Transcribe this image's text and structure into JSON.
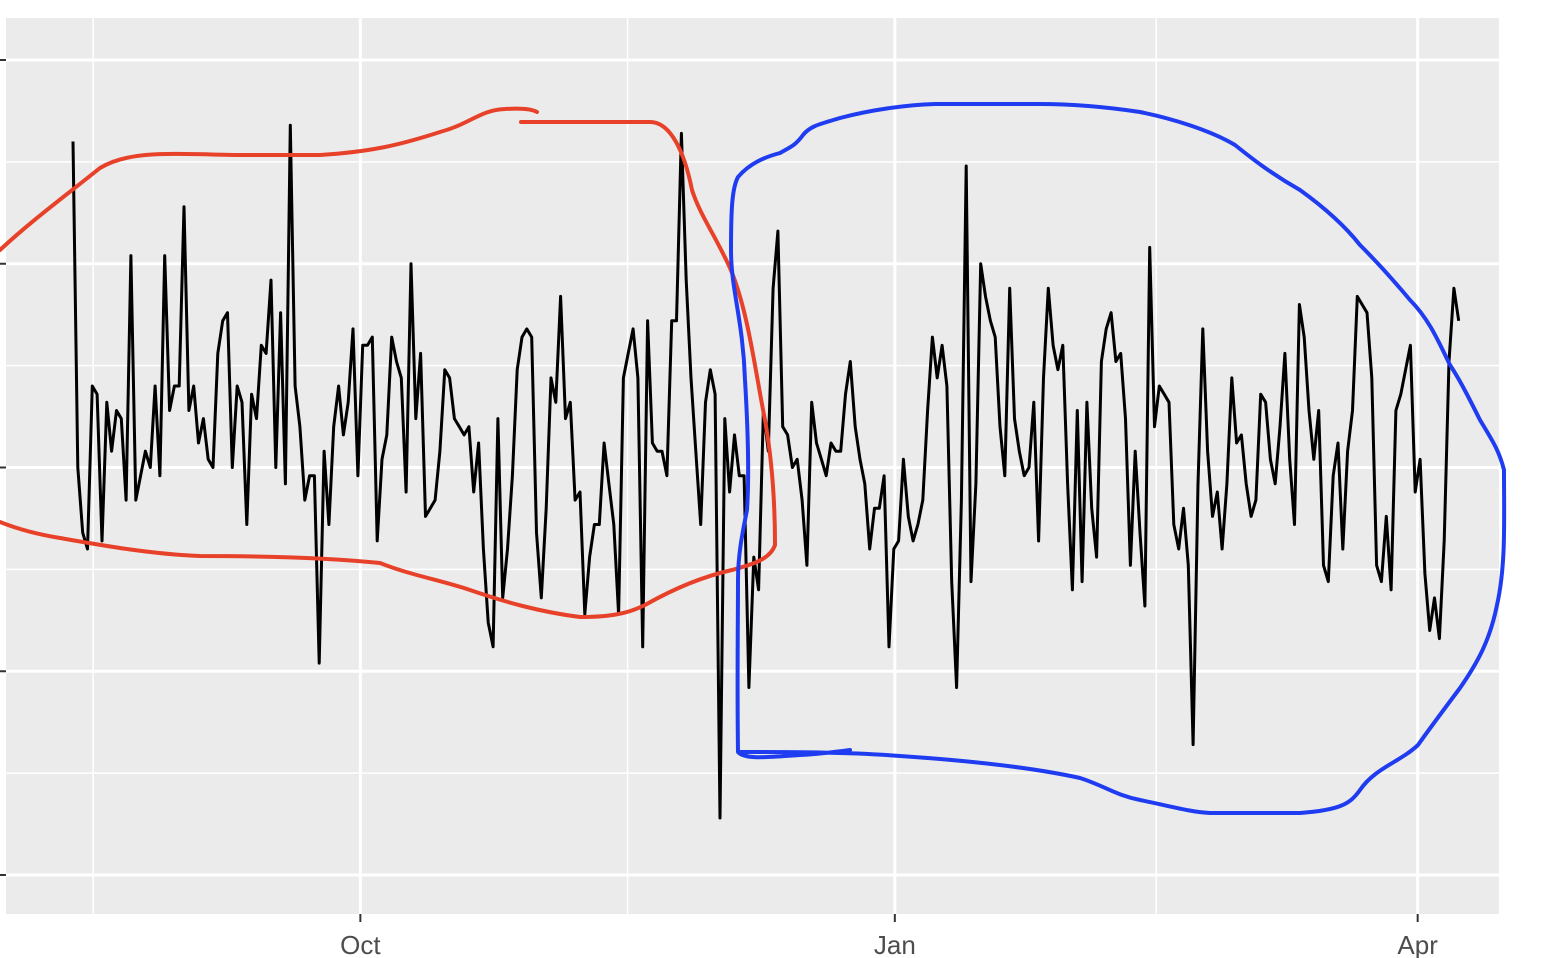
{
  "chart_data": {
    "type": "line",
    "title": "",
    "xlabel": "",
    "ylabel": "",
    "grid": true,
    "legend": "none",
    "x_start": "2024-08-01",
    "x_end": "2025-04-15",
    "xlim": [
      "2024-08-01",
      "2025-04-15"
    ],
    "ylim": [
      0,
      1
    ],
    "x_ticks": [
      {
        "date": "2024-10-01",
        "label": "Oct"
      },
      {
        "date": "2025-01-01",
        "label": "Jan"
      },
      {
        "date": "2025-04-01",
        "label": "Apr"
      }
    ],
    "colors": {
      "panel": "#ebebeb",
      "grid": "#ffffff",
      "line": "#000000",
      "red_annotation": "#e8412a",
      "blue_annotation": "#1f3cf0"
    },
    "series": [
      {
        "values": [
          0.9,
          0.5,
          0.42,
          0.4,
          0.6,
          0.59,
          0.41,
          0.58,
          0.52,
          0.57,
          0.56,
          0.46,
          0.76,
          0.46,
          0.49,
          0.52,
          0.5,
          0.6,
          0.49,
          0.76,
          0.57,
          0.6,
          0.6,
          0.82,
          0.57,
          0.6,
          0.53,
          0.56,
          0.51,
          0.5,
          0.64,
          0.68,
          0.69,
          0.5,
          0.6,
          0.58,
          0.43,
          0.59,
          0.56,
          0.65,
          0.64,
          0.73,
          0.5,
          0.69,
          0.48,
          0.92,
          0.6,
          0.55,
          0.46,
          0.49,
          0.49,
          0.26,
          0.52,
          0.43,
          0.55,
          0.6,
          0.54,
          0.58,
          0.67,
          0.49,
          0.65,
          0.65,
          0.66,
          0.41,
          0.51,
          0.54,
          0.66,
          0.63,
          0.61,
          0.47,
          0.75,
          0.56,
          0.64,
          0.44,
          0.45,
          0.46,
          0.52,
          0.62,
          0.61,
          0.56,
          0.55,
          0.54,
          0.55,
          0.47,
          0.53,
          0.4,
          0.31,
          0.28,
          0.56,
          0.34,
          0.4,
          0.49,
          0.62,
          0.66,
          0.67,
          0.66,
          0.42,
          0.34,
          0.45,
          0.61,
          0.58,
          0.71,
          0.56,
          0.58,
          0.46,
          0.47,
          0.32,
          0.39,
          0.43,
          0.43,
          0.53,
          0.48,
          0.43,
          0.32,
          0.61,
          0.64,
          0.67,
          0.61,
          0.28,
          0.68,
          0.53,
          0.52,
          0.52,
          0.49,
          0.68,
          0.68,
          0.91,
          0.73,
          0.61,
          0.52,
          0.43,
          0.58,
          0.62,
          0.59,
          0.07,
          0.56,
          0.47,
          0.54,
          0.49,
          0.49,
          0.23,
          0.39,
          0.35,
          0.57,
          0.52,
          0.72,
          0.79,
          0.55,
          0.54,
          0.5,
          0.51,
          0.46,
          0.38,
          0.58,
          0.53,
          0.51,
          0.49,
          0.53,
          0.52,
          0.52,
          0.59,
          0.63,
          0.55,
          0.51,
          0.48,
          0.4,
          0.45,
          0.45,
          0.49,
          0.28,
          0.4,
          0.41,
          0.51,
          0.44,
          0.41,
          0.43,
          0.46,
          0.57,
          0.66,
          0.61,
          0.65,
          0.6,
          0.36,
          0.23,
          0.46,
          0.87,
          0.36,
          0.48,
          0.75,
          0.71,
          0.68,
          0.66,
          0.55,
          0.49,
          0.72,
          0.56,
          0.52,
          0.49,
          0.5,
          0.58,
          0.41,
          0.61,
          0.72,
          0.65,
          0.62,
          0.65,
          0.48,
          0.35,
          0.57,
          0.36,
          0.58,
          0.45,
          0.39,
          0.63,
          0.67,
          0.69,
          0.63,
          0.64,
          0.56,
          0.38,
          0.52,
          0.42,
          0.33,
          0.77,
          0.55,
          0.6,
          0.59,
          0.58,
          0.43,
          0.4,
          0.45,
          0.38,
          0.16,
          0.48,
          0.67,
          0.52,
          0.44,
          0.47,
          0.4,
          0.48,
          0.61,
          0.53,
          0.54,
          0.48,
          0.44,
          0.46,
          0.59,
          0.58,
          0.51,
          0.48,
          0.55,
          0.64,
          0.51,
          0.43,
          0.7,
          0.66,
          0.57,
          0.51,
          0.57,
          0.38,
          0.36,
          0.49,
          0.53,
          0.4,
          0.52,
          0.57,
          0.71,
          0.7,
          0.69,
          0.61,
          0.38,
          0.36,
          0.44,
          0.35,
          0.57,
          0.59,
          0.62,
          0.65,
          0.47,
          0.51,
          0.37,
          0.3,
          0.34,
          0.29,
          0.41,
          0.63,
          0.72,
          0.68
        ]
      }
    ]
  }
}
